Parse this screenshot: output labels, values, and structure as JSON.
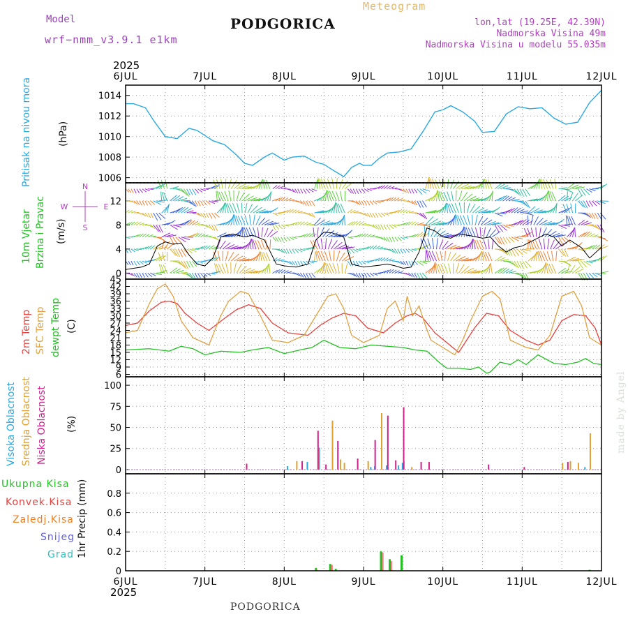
{
  "header": {
    "title": "PODGORICA",
    "meteogram": "Meteogram",
    "model_label": "Model",
    "model_name": "wrf−nmm_v3.9.1  e1km",
    "lonlat": "lon,lat (19.25E, 42.39N)",
    "elevation": "Nadmorska Visina 49m",
    "model_elevation": "Nadmorska Visina u modelu 55.035m",
    "top_year": "2025",
    "bottom_year": "2025",
    "footer": "PODGORICA",
    "made_by": "made by Angel"
  },
  "colors": {
    "pressure": "#29a8e0",
    "temp2m": "#e8403c",
    "sfc": "#e0a040",
    "dew": "#22c022",
    "high_cloud": "#29a8e0",
    "mid_cloud": "#e0a030",
    "low_cloud": "#d0208c",
    "total_precip": "#22c022",
    "conv_precip": "#e8403c",
    "frozen_precip": "#f08020",
    "snow": "#6060e0",
    "hail": "#30c0c0"
  },
  "panel_labels": {
    "pressure": [
      "Pritisak na nivou mora",
      "(hPa)"
    ],
    "wind": [
      "10m Vjetar",
      "Brzina i Pravac",
      "(m/s)"
    ],
    "wind_compass": [
      "N",
      "S",
      "W",
      "E"
    ],
    "temp": [
      "2m Temp",
      "SFC Temp",
      "dewpt Temp",
      "(C)"
    ],
    "cloud": [
      "Visoka Oblacnost",
      "Srednja Oblacnost",
      "Niska Oblacnost",
      "(%)"
    ],
    "precip_legend": [
      "Ukupna Kisa",
      "Konvek.Kisa",
      "Zaledj.Kisa",
      "Snijeg",
      "Grad"
    ],
    "precip_axis": "1hr Precip (mm)"
  },
  "chart_data": [
    {
      "type": "line",
      "name": "pressure",
      "x_labels": [
        "6JUL",
        "7JUL",
        "8JUL",
        "9JUL",
        "10JUL",
        "11JUL",
        "12JUL"
      ],
      "ylim": [
        1005.5,
        1015
      ],
      "yticks": [
        1006,
        1008,
        1010,
        1012,
        1014
      ],
      "x_days": [
        0,
        0.1,
        0.25,
        0.35,
        0.5,
        0.65,
        0.8,
        0.9,
        1.0,
        1.1,
        1.25,
        1.4,
        1.5,
        1.6,
        1.75,
        1.85,
        2.0,
        2.1,
        2.25,
        2.4,
        2.5,
        2.6,
        2.75,
        2.85,
        2.95,
        3.0,
        3.1,
        3.2,
        3.3,
        3.45,
        3.6,
        3.75,
        3.9,
        4.0,
        4.1,
        4.25,
        4.4,
        4.5,
        4.65,
        4.8,
        4.95,
        5.1,
        5.25,
        5.4,
        5.55,
        5.7,
        5.85,
        6.0
      ],
      "values": [
        1013.2,
        1013.2,
        1012.8,
        1011.6,
        1010.0,
        1009.8,
        1010.8,
        1010.6,
        1010.1,
        1009.6,
        1009.2,
        1008.2,
        1007.4,
        1007.2,
        1008.0,
        1008.4,
        1007.7,
        1008.0,
        1008.1,
        1007.5,
        1007.3,
        1006.8,
        1006.1,
        1007.0,
        1007.4,
        1007.2,
        1007.2,
        1007.9,
        1008.4,
        1008.5,
        1008.8,
        1010.5,
        1012.4,
        1012.6,
        1013.0,
        1012.4,
        1011.5,
        1010.4,
        1010.5,
        1012.2,
        1012.9,
        1012.7,
        1012.8,
        1011.8,
        1011.2,
        1011.4,
        1013.3,
        1014.5
      ]
    },
    {
      "type": "line",
      "name": "wind",
      "ylim": [
        -1,
        15
      ],
      "yticks": [
        0,
        4,
        8,
        12
      ],
      "x_days": [
        0,
        0.2,
        0.3,
        0.4,
        0.5,
        0.6,
        0.7,
        0.8,
        0.9,
        1.0,
        1.1,
        1.2,
        1.35,
        1.5,
        1.6,
        1.75,
        1.9,
        2.0,
        2.15,
        2.3,
        2.4,
        2.5,
        2.6,
        2.75,
        2.85,
        3.0,
        3.2,
        3.3,
        3.4,
        3.5,
        3.6,
        3.7,
        3.8,
        3.9,
        4.0,
        4.1,
        4.2,
        4.35,
        4.5,
        4.6,
        4.7,
        4.8,
        4.9,
        5.0,
        5.15,
        5.3,
        5.4,
        5.5,
        5.6,
        5.75,
        5.85,
        6.0
      ],
      "values": [
        0.6,
        1.0,
        1.5,
        4.5,
        5.2,
        4.8,
        5.0,
        3.0,
        1.5,
        1.2,
        2.5,
        6.0,
        6.5,
        6.0,
        6.3,
        5.5,
        1.5,
        1.2,
        1.0,
        1.5,
        5.5,
        6.8,
        6.7,
        6.0,
        1.5,
        1.0,
        1.3,
        1.5,
        1.2,
        0.8,
        1.0,
        3.5,
        7.5,
        7.0,
        6.0,
        5.8,
        6.5,
        6.2,
        5.8,
        6.0,
        4.5,
        3.5,
        4.2,
        4.5,
        5.5,
        6.5,
        6.0,
        4.5,
        5.5,
        4.2,
        2.5,
        4.3
      ]
    },
    {
      "type": "line",
      "name": "temperature",
      "ylim": [
        5,
        45
      ],
      "yticks": [
        6,
        9,
        12,
        15,
        18,
        21,
        24,
        27,
        30,
        33,
        36,
        39,
        42,
        45
      ],
      "series": [
        {
          "name": "2m Temp",
          "x_days": [
            0,
            0.15,
            0.3,
            0.45,
            0.55,
            0.65,
            0.75,
            0.9,
            1.05,
            1.25,
            1.4,
            1.55,
            1.7,
            1.85,
            2.05,
            2.3,
            2.45,
            2.6,
            2.75,
            2.9,
            3.05,
            3.25,
            3.4,
            3.55,
            3.65,
            3.75,
            3.9,
            4.05,
            4.2,
            4.3,
            4.4,
            4.55,
            4.7,
            4.85,
            5.05,
            5.2,
            5.35,
            5.5,
            5.65,
            5.8,
            5.92,
            6.0
          ],
          "values": [
            26,
            27,
            32,
            35.5,
            36,
            35,
            31,
            27,
            24,
            29,
            32.5,
            34.5,
            33,
            27,
            23,
            22,
            26,
            29,
            31,
            30,
            25,
            23,
            27,
            30,
            31,
            29,
            23,
            19,
            15,
            20,
            25,
            31,
            30,
            24,
            20,
            18,
            20,
            28,
            30.5,
            30,
            25,
            18
          ]
        },
        {
          "name": "SFC Temp",
          "x_days": [
            0,
            0.15,
            0.3,
            0.4,
            0.5,
            0.6,
            0.7,
            0.85,
            1.05,
            1.2,
            1.3,
            1.45,
            1.55,
            1.7,
            1.85,
            2.05,
            2.25,
            2.4,
            2.55,
            2.65,
            2.75,
            2.85,
            3.0,
            3.2,
            3.3,
            3.4,
            3.5,
            3.55,
            3.62,
            3.7,
            3.78,
            3.85,
            4.0,
            4.15,
            4.25,
            4.35,
            4.5,
            4.62,
            4.72,
            4.85,
            5.05,
            5.2,
            5.35,
            5.5,
            5.65,
            5.75,
            5.85,
            6.0
          ],
          "values": [
            23,
            24,
            35,
            41,
            43,
            38,
            28,
            21,
            18,
            30,
            36,
            40,
            39,
            30,
            20,
            19,
            22,
            30,
            38,
            39,
            33,
            22,
            19,
            22,
            33,
            36,
            28,
            38,
            30,
            34,
            26,
            20,
            17,
            14,
            20,
            28,
            38,
            40,
            37,
            20,
            17,
            16,
            22,
            38,
            40,
            34,
            21,
            18
          ]
        },
        {
          "name": "dewpt Temp",
          "x_days": [
            0,
            0.3,
            0.55,
            0.7,
            0.85,
            1.0,
            1.2,
            1.45,
            1.6,
            1.8,
            2.0,
            2.2,
            2.35,
            2.5,
            2.7,
            2.9,
            3.1,
            3.3,
            3.5,
            3.65,
            3.8,
            3.95,
            4.05,
            4.2,
            4.35,
            4.45,
            4.55,
            4.6,
            4.72,
            4.85,
            4.95,
            5.05,
            5.2,
            5.4,
            5.55,
            5.7,
            5.8,
            5.9,
            6.0
          ],
          "values": [
            16,
            16.5,
            15.5,
            17.5,
            16.5,
            14,
            15.5,
            15,
            16,
            17,
            14.5,
            16,
            17,
            20,
            17,
            16.5,
            18,
            17.5,
            17,
            16,
            15.5,
            11,
            8.5,
            8.5,
            8,
            9,
            6.5,
            7,
            11,
            10,
            12,
            10,
            14,
            10.5,
            10,
            11,
            12.5,
            10.5,
            10
          ]
        }
      ]
    },
    {
      "type": "bar",
      "name": "cloud cover",
      "ylim": [
        -5,
        110
      ],
      "yticks": [
        0,
        25,
        50,
        75,
        100
      ],
      "series": [
        {
          "name": "Visoka Oblacnost",
          "x_days": [
            2.05,
            2.3,
            2.45,
            3.1,
            3.15,
            3.3,
            3.45,
            3.5,
            5.8
          ],
          "values": [
            4,
            9,
            26,
            3,
            4,
            5,
            5,
            8,
            3
          ]
        },
        {
          "name": "Srednja Oblacnost",
          "x_days": [
            2.15,
            2.42,
            2.6,
            2.7,
            2.75,
            3.05,
            3.22,
            3.5,
            3.6,
            5.5,
            5.6,
            5.7,
            5.85
          ],
          "values": [
            10,
            25,
            58,
            12,
            8,
            10,
            67,
            10,
            3,
            8,
            10,
            8,
            43
          ]
        },
        {
          "name": "Niska Oblacnost",
          "x_days": [
            1.5,
            2.2,
            2.4,
            2.5,
            2.65,
            2.9,
            3.12,
            3.28,
            3.38,
            3.48,
            3.7,
            3.8,
            4.55,
            5.0,
            5.55
          ],
          "values": [
            7,
            10,
            46,
            6,
            34,
            13,
            35,
            64,
            11,
            74,
            9,
            9,
            6,
            3,
            9
          ]
        }
      ]
    },
    {
      "type": "bar",
      "name": "1hr precipitation",
      "ylim": [
        0,
        1.0
      ],
      "yticks": [
        0,
        0.2,
        0.4,
        0.6,
        0.8
      ],
      "series": [
        {
          "name": "Ukupna Kisa",
          "x_days": [
            2.4,
            2.58,
            2.65,
            3.22,
            3.33,
            3.48,
            5.85
          ],
          "values": [
            0.03,
            0.07,
            0.02,
            0.2,
            0.12,
            0.16,
            0.01
          ]
        },
        {
          "name": "Konvek.Kisa",
          "x_days": [
            2.41,
            2.6,
            3.24,
            3.35
          ],
          "values": [
            0.01,
            0.06,
            0.19,
            0.1
          ]
        },
        {
          "name": "Zaledj.Kisa",
          "x_days": [],
          "values": []
        },
        {
          "name": "Snijeg",
          "x_days": [],
          "values": []
        },
        {
          "name": "Grad",
          "x_days": [],
          "values": []
        }
      ]
    }
  ]
}
